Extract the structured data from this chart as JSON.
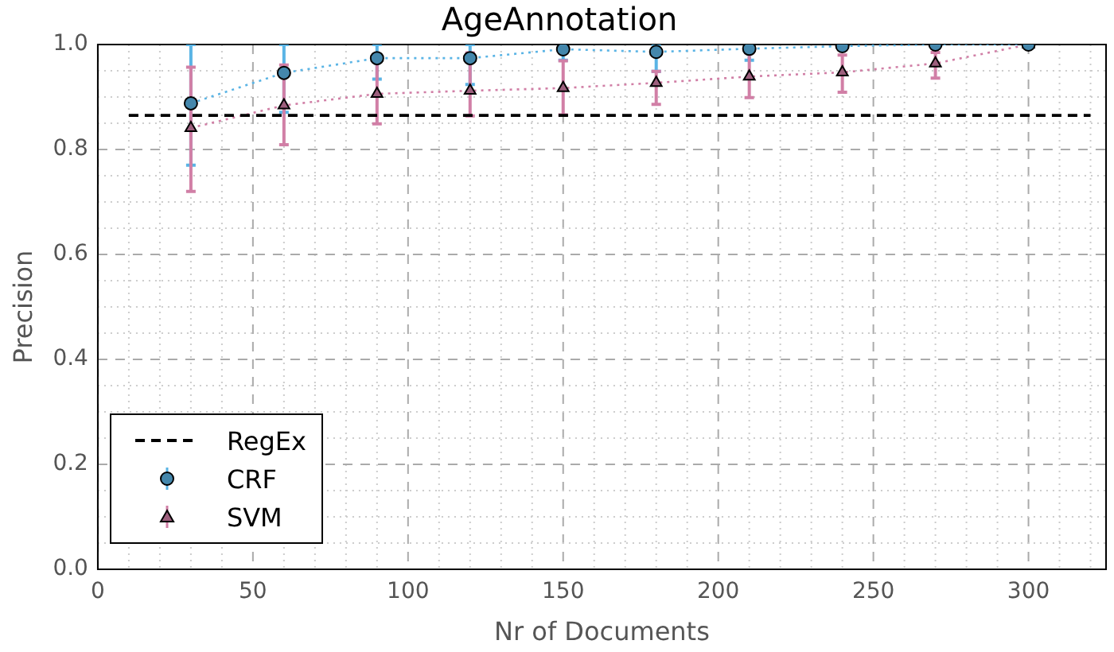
{
  "chart_data": {
    "type": "line",
    "title": "AgeAnnotation",
    "xlabel": "Nr of Documents",
    "ylabel": "Precision",
    "xlim": [
      0,
      325
    ],
    "ylim": [
      0,
      1
    ],
    "xticks": [
      0,
      {
        "value": 10,
        "label": null
      },
      {
        "value": 20,
        "label": null
      },
      {
        "value": 30,
        "label": null
      },
      {
        "value": 40,
        "label": null
      },
      50,
      {
        "value": 60,
        "label": null
      },
      {
        "value": 70,
        "label": null
      },
      {
        "value": 80,
        "label": null
      },
      {
        "value": 90,
        "label": null
      },
      100,
      {
        "value": 110,
        "label": null
      },
      {
        "value": 120,
        "label": null
      },
      {
        "value": 130,
        "label": null
      },
      {
        "value": 140,
        "label": null
      },
      150,
      {
        "value": 160,
        "label": null
      },
      {
        "value": 170,
        "label": null
      },
      {
        "value": 180,
        "label": null
      },
      {
        "value": 190,
        "label": null
      },
      200,
      {
        "value": 210,
        "label": null
      },
      {
        "value": 220,
        "label": null
      },
      {
        "value": 230,
        "label": null
      },
      {
        "value": 240,
        "label": null
      },
      250,
      {
        "value": 260,
        "label": null
      },
      {
        "value": 270,
        "label": null
      },
      {
        "value": 280,
        "label": null
      },
      {
        "value": 290,
        "label": null
      },
      300,
      {
        "value": 310,
        "label": null
      },
      {
        "value": 320,
        "label": null
      }
    ],
    "yticks": [
      {
        "value": 0,
        "label": "0.0"
      },
      {
        "value": 0.05,
        "label": null
      },
      {
        "value": 0.1,
        "label": null
      },
      {
        "value": 0.15,
        "label": null
      },
      0.2,
      {
        "value": 0.25,
        "label": null
      },
      {
        "value": 0.3,
        "label": null
      },
      {
        "value": 0.35,
        "label": null
      },
      0.4,
      {
        "value": 0.45,
        "label": null
      },
      {
        "value": 0.5,
        "label": null
      },
      {
        "value": 0.55,
        "label": null
      },
      0.6,
      {
        "value": 0.65,
        "label": null
      },
      {
        "value": 0.7,
        "label": null
      },
      {
        "value": 0.75,
        "label": null
      },
      0.8,
      {
        "value": 0.85,
        "label": null
      },
      {
        "value": 0.9,
        "label": null
      },
      {
        "value": 0.95,
        "label": null
      },
      {
        "value": 1,
        "label": "1.0"
      }
    ],
    "grid": true,
    "legend": "bottom left",
    "series": [
      {
        "name": "RegEx",
        "color": "#000000",
        "x": [
          10,
          320
        ],
        "values": [
          0.865,
          0.865
        ],
        "line_style": "dashed",
        "marker": "none"
      },
      {
        "name": "CRF",
        "color": "#5ab4e5",
        "x": [
          30,
          60,
          90,
          120,
          150,
          180,
          210,
          240,
          270,
          300
        ],
        "values": [
          0.888,
          0.946,
          0.974,
          0.974,
          0.991,
          0.986,
          0.992,
          0.997,
          1.0,
          1.0
        ],
        "errors": [
          [
            0.77,
            1.0
          ],
          [
            0.871,
            1.0
          ],
          [
            0.934,
            1.0
          ],
          [
            0.924,
            1.0
          ],
          [
            0.97,
            1.0
          ],
          [
            0.949,
            1.0
          ],
          [
            0.97,
            1.0
          ],
          null,
          null,
          null
        ],
        "line_style": "dotted",
        "marker": "circle"
      },
      {
        "name": "SVM",
        "color": "#d17fa6",
        "x": [
          30,
          60,
          90,
          120,
          150,
          180,
          210,
          240,
          270,
          300
        ],
        "values": [
          0.841,
          0.884,
          0.906,
          0.912,
          0.917,
          0.927,
          0.939,
          0.947,
          0.964,
          1.0
        ],
        "errors": [
          [
            0.72,
            0.957
          ],
          [
            0.809,
            0.961
          ],
          [
            0.849,
            0.979
          ],
          [
            0.864,
            0.984
          ],
          [
            0.866,
            0.969
          ],
          [
            0.886,
            0.949
          ],
          [
            0.899,
            0.984
          ],
          [
            0.909,
            0.98
          ],
          [
            0.936,
            0.985
          ],
          null
        ],
        "line_style": "dotted",
        "marker": "triangle"
      }
    ]
  }
}
